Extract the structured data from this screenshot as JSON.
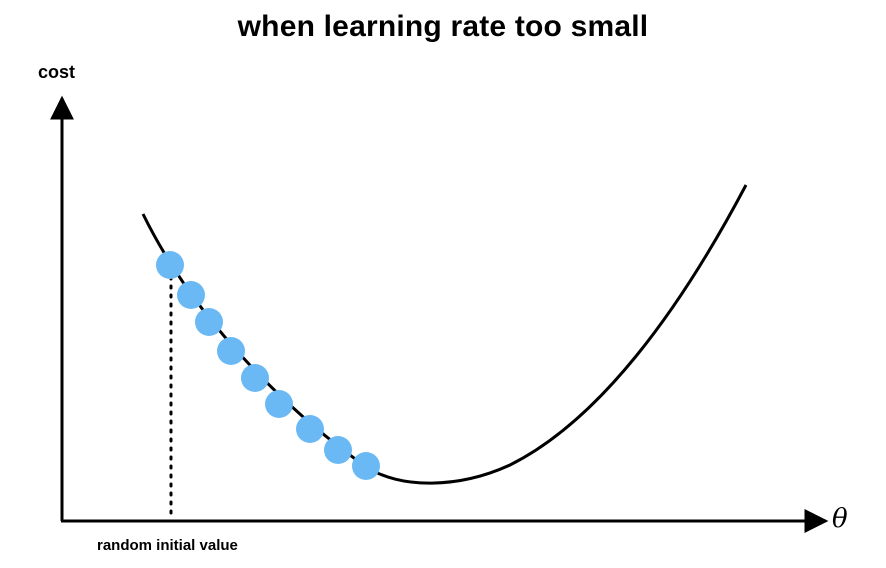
{
  "title": "when learning rate too small",
  "axes": {
    "y_label": "cost",
    "x_label": "θ"
  },
  "annotation": {
    "initial_value_label": "random initial value"
  },
  "colors": {
    "step_dot": "#6ab9f5",
    "curve": "#000000",
    "axis": "#000000"
  },
  "steps": {
    "count": 9
  }
}
